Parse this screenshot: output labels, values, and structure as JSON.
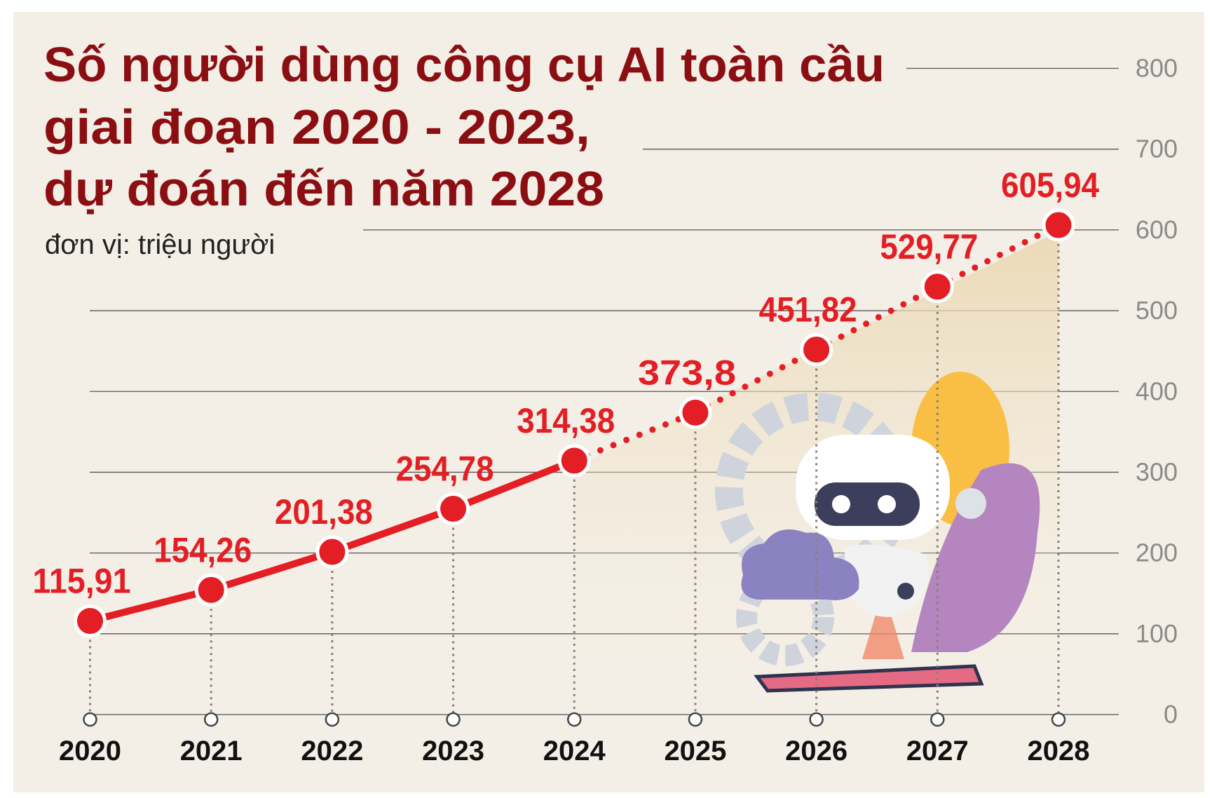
{
  "chart_data": {
    "type": "line",
    "title": [
      "Số người dùng công cụ AI toàn cầu",
      "giai đoạn 2020 - 2023,",
      "dự đoán đến năm 2028"
    ],
    "subtitle": "đơn vị: triệu người",
    "categories": [
      "2020",
      "2021",
      "2022",
      "2023",
      "2024",
      "2025",
      "2026",
      "2027",
      "2028"
    ],
    "series": [
      {
        "color": "#e31e24",
        "values": [
          115.91,
          154.26,
          201.38,
          254.78,
          314.38,
          373.8,
          451.82,
          529.77,
          605.94
        ],
        "value_labels": [
          "115,91",
          "154,26",
          "201,38",
          "254,78",
          "314,38",
          "373,8",
          "451,82",
          "529,77",
          "605,94"
        ]
      }
    ],
    "ylim": [
      0,
      800
    ],
    "yticks": [
      0,
      100,
      200,
      300,
      400,
      500,
      600,
      700,
      800
    ],
    "grid": true
  }
}
